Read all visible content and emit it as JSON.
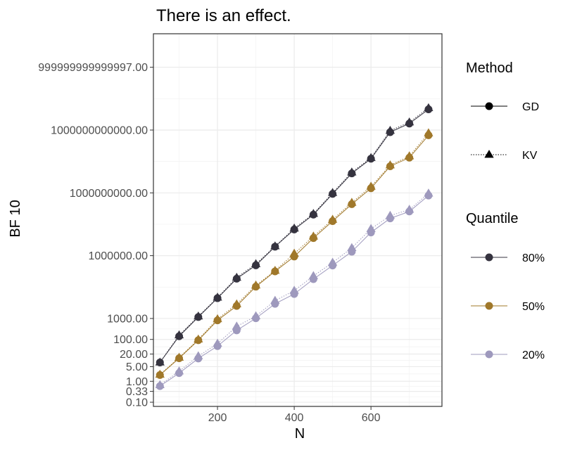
{
  "chart_data": {
    "type": "line",
    "title": "There is an effect.",
    "xlabel": "N",
    "ylabel": "BF 10",
    "y_scale": "log",
    "xlim": [
      33,
      785
    ],
    "ylim_log10": [
      -1.2,
      16.6
    ],
    "grid": true,
    "x_ticks": [
      {
        "value": 200,
        "label": "200"
      },
      {
        "value": 400,
        "label": "400"
      },
      {
        "value": 600,
        "label": "600"
      }
    ],
    "y_ticks": [
      {
        "value": 0.1,
        "label": "0.10"
      },
      {
        "value": 0.33,
        "label": "0.33"
      },
      {
        "value": 1,
        "label": "1.00"
      },
      {
        "value": 5,
        "label": "5.00"
      },
      {
        "value": 20,
        "label": "20.00"
      },
      {
        "value": 100,
        "label": "100.00"
      },
      {
        "value": 1000,
        "label": "1000.00"
      },
      {
        "value": 1000000,
        "label": "1000000.00"
      },
      {
        "value": 1000000000,
        "label": "1000000000.00"
      },
      {
        "value": 1000000000000,
        "label": "1000000000000.00"
      },
      {
        "value": 1000000000000000.0,
        "label": "999999999999997.00"
      }
    ],
    "x": [
      50,
      100,
      150,
      200,
      250,
      300,
      350,
      400,
      450,
      500,
      550,
      600,
      650,
      700,
      750
    ],
    "series": [
      {
        "method": "GD",
        "quantile": "80%",
        "color": "#35333f",
        "log10_values": [
          0.9,
          2.15,
          3.07,
          3.97,
          4.9,
          5.54,
          6.43,
          7.25,
          7.96,
          8.95,
          9.93,
          10.63,
          11.9,
          12.31,
          12.99
        ]
      },
      {
        "method": "KV",
        "quantile": "80%",
        "color": "#35333f",
        "log10_values": [
          0.9,
          2.2,
          3.1,
          4.0,
          4.95,
          5.6,
          6.45,
          7.3,
          8.0,
          9.0,
          9.98,
          10.67,
          11.97,
          12.37,
          13.05
        ]
      },
      {
        "method": "GD",
        "quantile": "50%",
        "color": "#a0782a",
        "log10_values": [
          0.3,
          1.1,
          1.96,
          2.91,
          3.6,
          4.52,
          5.25,
          5.96,
          6.84,
          7.65,
          8.46,
          9.22,
          10.27,
          10.68,
          11.75
        ]
      },
      {
        "method": "KV",
        "quantile": "50%",
        "color": "#a0782a",
        "log10_values": [
          0.32,
          1.13,
          2.0,
          2.97,
          3.68,
          4.58,
          5.28,
          6.1,
          6.92,
          7.72,
          8.53,
          9.3,
          10.32,
          10.75,
          11.85
        ]
      },
      {
        "method": "GD",
        "quantile": "20%",
        "color": "#9e99bd",
        "log10_values": [
          -0.23,
          0.39,
          1.09,
          1.68,
          2.43,
          3.01,
          3.7,
          4.17,
          4.88,
          5.53,
          6.19,
          7.11,
          7.78,
          8.11,
          8.87
        ]
      },
      {
        "method": "KV",
        "quantile": "20%",
        "color": "#9e99bd",
        "log10_values": [
          -0.18,
          0.48,
          1.2,
          1.8,
          2.62,
          3.11,
          3.85,
          4.33,
          5.03,
          5.67,
          6.37,
          7.28,
          7.91,
          8.2,
          8.97
        ]
      }
    ],
    "legend": {
      "placement": "right",
      "method": {
        "title": "Method",
        "items": [
          {
            "label": "GD",
            "marker": "circle",
            "line": "solid"
          },
          {
            "label": "KV",
            "marker": "triangle",
            "line": "dotted"
          }
        ]
      },
      "quantile": {
        "title": "Quantile",
        "items": [
          {
            "label": "80%",
            "color": "#35333f"
          },
          {
            "label": "50%",
            "color": "#a0782a"
          },
          {
            "label": "20%",
            "color": "#9e99bd"
          }
        ]
      }
    }
  }
}
